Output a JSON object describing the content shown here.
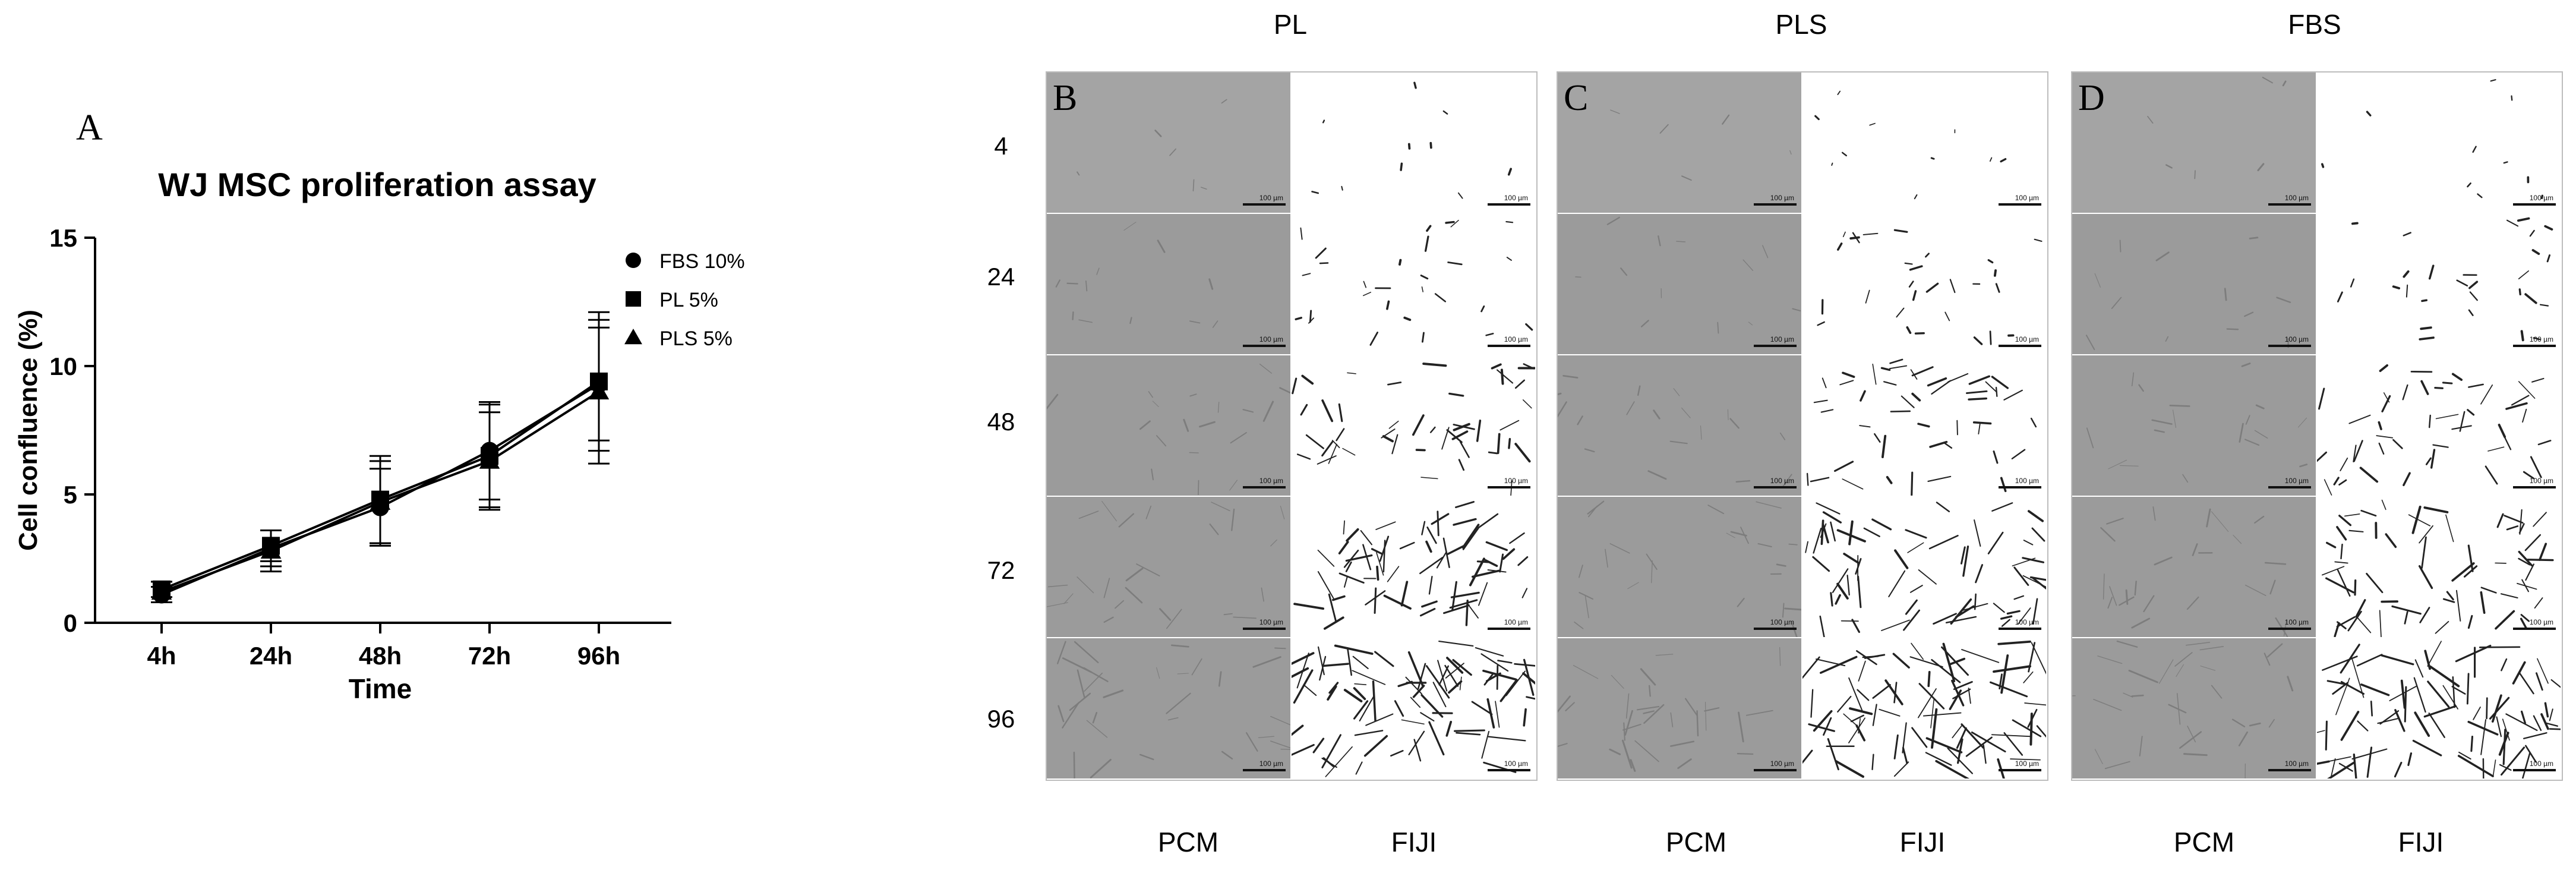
{
  "panel_a_letter": "A",
  "chart_data": {
    "type": "line",
    "title": "WJ MSC proliferation assay",
    "xlabel": "Time",
    "ylabel": "Cell confluence (%)",
    "categories": [
      "4h",
      "24h",
      "48h",
      "72h",
      "96h"
    ],
    "ylim": [
      0,
      15
    ],
    "yticks": [
      0,
      5,
      10,
      15
    ],
    "legend_position": "top-right",
    "grid": false,
    "series": [
      {
        "name": "FBS 10%",
        "marker": "circle",
        "values": [
          1.1,
          2.9,
          4.5,
          6.7,
          9.3
        ],
        "errors": [
          0.3,
          0.7,
          1.5,
          1.9,
          2.2
        ]
      },
      {
        "name": "PL 5%",
        "marker": "square",
        "values": [
          1.3,
          3.0,
          4.8,
          6.5,
          9.4
        ],
        "errors": [
          0.3,
          0.6,
          1.7,
          2.0,
          2.7
        ]
      },
      {
        "name": "PLS 5%",
        "marker": "triangle",
        "values": [
          1.2,
          2.8,
          4.7,
          6.3,
          9.0
        ],
        "errors": [
          0.4,
          0.8,
          1.6,
          1.9,
          2.8
        ]
      }
    ]
  },
  "images": {
    "column_headers": [
      "PL",
      "PLS",
      "FBS"
    ],
    "panel_letters": [
      "B",
      "C",
      "D"
    ],
    "row_labels": [
      "4",
      "24",
      "48",
      "72",
      "96"
    ],
    "sub_labels": [
      "PCM",
      "FIJI"
    ],
    "scale_bar_label": "100 µm"
  }
}
